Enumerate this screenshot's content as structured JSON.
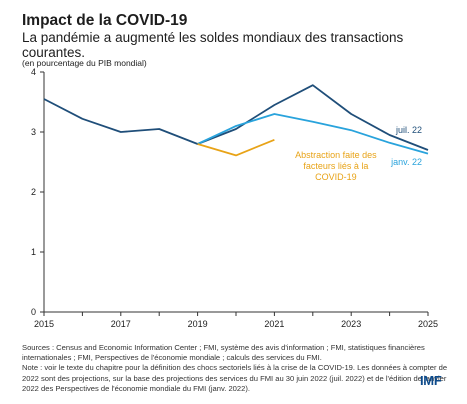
{
  "title": "Impact de la COVID-19",
  "subtitle": "La pandémie a augmenté les soldes mondiaux des transactions courantes.",
  "unit_note": "(en pourcentage du PIB mondial)",
  "sources": [
    "Sources : Census and Economic Information Center ; FMI, système des avis d'information ; FMI, statistiques financières internationales ; FMI, Perspectives de l'économie mondiale ; calculs des services du FMI.",
    "Note : voir le texte du chapitre pour la définition des chocs sectoriels liés à la crise de la COVID-19. Les données à compter de 2022 sont des projections, sur la base des projections des services du FMI au 30 juin 2022 (juil. 2022) et de l'édition de janvier 2022 des Perspectives de l'économie mondiale du FMI (janv. 2022)."
  ],
  "logo": "IMF",
  "colors": {
    "juil": "#1f4e79",
    "janv": "#29a3dc",
    "abstraction": "#e8a317",
    "axis": "#333333"
  },
  "chart_data": {
    "type": "line",
    "xlim": [
      2015,
      2025
    ],
    "ylim": [
      0,
      4
    ],
    "x_ticks": [
      "2015",
      "2017",
      "2019",
      "2021",
      "2023",
      "2025"
    ],
    "y_ticks": [
      "0",
      "1",
      "2",
      "3",
      "4"
    ],
    "grid": false,
    "series": [
      {
        "name": "juil. 22",
        "color_key": "juil",
        "x": [
          2015,
          2016,
          2017,
          2018,
          2019,
          2020,
          2021,
          2022,
          2023,
          2024,
          2025
        ],
        "y": [
          3.55,
          3.22,
          3.0,
          3.05,
          2.8,
          3.05,
          3.45,
          3.78,
          3.3,
          2.95,
          2.7
        ]
      },
      {
        "name": "janv. 22",
        "color_key": "janv",
        "x": [
          2019,
          2020,
          2021,
          2022,
          2023,
          2024,
          2025
        ],
        "y": [
          2.8,
          3.1,
          3.3,
          3.17,
          3.03,
          2.82,
          2.64
        ]
      },
      {
        "name": "Abstraction faite des facteurs liés à la COVID-19",
        "color_key": "abstraction",
        "x": [
          2019,
          2020,
          2021
        ],
        "y": [
          2.8,
          2.61,
          2.87
        ]
      }
    ]
  }
}
